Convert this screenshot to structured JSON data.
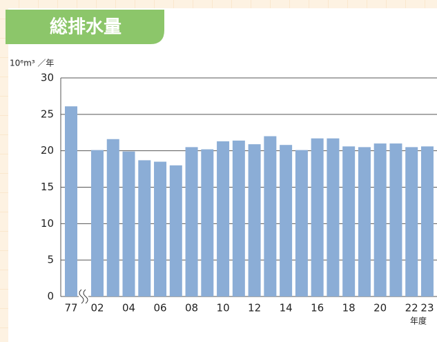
{
  "chart_data": {
    "type": "bar",
    "title": "総排水量",
    "y_label": "10⁶m³ ／年",
    "x_label": "年度",
    "categories": [
      "77",
      "02",
      null,
      "04",
      null,
      "06",
      null,
      "08",
      null,
      "10",
      null,
      "12",
      null,
      "14",
      null,
      "16",
      null,
      "18",
      null,
      "20",
      null,
      "22",
      "23"
    ],
    "values": [
      26.1,
      20.1,
      21.6,
      19.9,
      18.7,
      18.5,
      18.0,
      20.5,
      20.2,
      21.3,
      21.4,
      20.9,
      22.0,
      20.8,
      20.1,
      21.7,
      21.7,
      20.6,
      20.5,
      21.0,
      21.0,
      20.5,
      20.6
    ],
    "color": "#8badd6",
    "ylim": [
      0,
      30
    ],
    "yticks": [
      0,
      5,
      10,
      15,
      20,
      25,
      30
    ],
    "grid": true
  }
}
